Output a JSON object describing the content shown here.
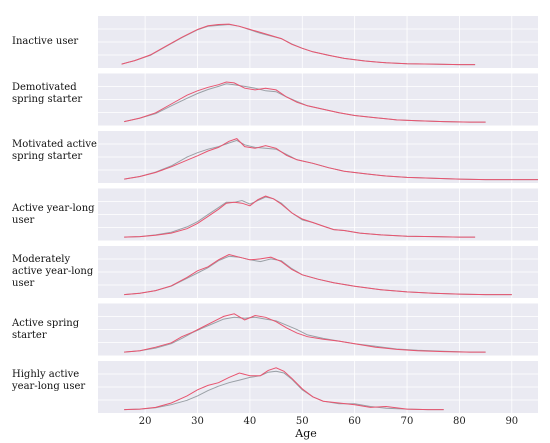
{
  "chart_data": {
    "type": "line",
    "title": "",
    "xlabel": "Age",
    "ylabel": "",
    "xlim": [
      11,
      95
    ],
    "xticks": [
      20,
      30,
      40,
      50,
      60,
      70,
      80,
      90
    ],
    "grid": true,
    "colors": {
      "panel_bg": "#eaeaf2",
      "grid": "#ffffff",
      "series_a": "#9aa0a6",
      "series_b": "#e8546f"
    },
    "panels": [
      {
        "label": "Inactive user",
        "x": [
          15.5,
          18,
          21,
          24,
          27,
          30,
          32,
          34,
          36,
          38,
          40,
          42,
          44,
          46,
          48,
          50,
          52,
          55,
          58,
          62,
          66,
          70,
          75,
          80,
          83
        ],
        "a": [
          0.02,
          0.1,
          0.22,
          0.42,
          0.62,
          0.8,
          0.88,
          0.9,
          0.92,
          0.88,
          0.8,
          0.72,
          0.66,
          0.6,
          0.48,
          0.38,
          0.3,
          0.22,
          0.15,
          0.09,
          0.05,
          0.03,
          0.02,
          0.01,
          0.01
        ],
        "b": [
          0.02,
          0.1,
          0.23,
          0.43,
          0.63,
          0.81,
          0.89,
          0.92,
          0.93,
          0.88,
          0.81,
          0.74,
          0.67,
          0.6,
          0.47,
          0.38,
          0.3,
          0.22,
          0.15,
          0.09,
          0.05,
          0.03,
          0.02,
          0.01,
          0.01
        ]
      },
      {
        "label": "Demotivated spring starter",
        "x": [
          16,
          19,
          22,
          25,
          28,
          30,
          32,
          34,
          35.5,
          37,
          39,
          41,
          43,
          45,
          47,
          49,
          51,
          54,
          57,
          60,
          64,
          68,
          72,
          77,
          82,
          85
        ],
        "a": [
          0.02,
          0.1,
          0.2,
          0.38,
          0.55,
          0.66,
          0.75,
          0.82,
          0.88,
          0.86,
          0.82,
          0.78,
          0.72,
          0.7,
          0.58,
          0.48,
          0.38,
          0.3,
          0.22,
          0.16,
          0.11,
          0.06,
          0.04,
          0.02,
          0.01,
          0.01
        ],
        "b": [
          0.02,
          0.1,
          0.22,
          0.42,
          0.62,
          0.72,
          0.8,
          0.86,
          0.92,
          0.9,
          0.78,
          0.74,
          0.78,
          0.74,
          0.58,
          0.46,
          0.38,
          0.3,
          0.22,
          0.16,
          0.11,
          0.06,
          0.04,
          0.02,
          0.01,
          0.01
        ]
      },
      {
        "label": "Motivated active spring starter",
        "x": [
          16,
          19,
          22,
          25,
          28,
          30,
          32,
          34,
          36,
          37.5,
          39,
          41,
          43,
          45,
          47,
          49,
          52,
          55,
          58,
          62,
          66,
          70,
          75,
          80,
          85,
          90,
          95
        ],
        "a": [
          0.02,
          0.08,
          0.18,
          0.32,
          0.52,
          0.62,
          0.7,
          0.76,
          0.84,
          0.9,
          0.8,
          0.74,
          0.72,
          0.7,
          0.58,
          0.46,
          0.38,
          0.28,
          0.2,
          0.14,
          0.09,
          0.06,
          0.04,
          0.02,
          0.01,
          0.01,
          0.01
        ],
        "b": [
          0.02,
          0.08,
          0.17,
          0.3,
          0.45,
          0.55,
          0.66,
          0.74,
          0.88,
          0.94,
          0.76,
          0.72,
          0.78,
          0.72,
          0.56,
          0.46,
          0.38,
          0.28,
          0.2,
          0.14,
          0.09,
          0.06,
          0.04,
          0.02,
          0.01,
          0.01,
          0.01
        ]
      },
      {
        "label": "Active year-long user",
        "x": [
          16,
          19,
          22,
          25,
          28,
          30,
          32,
          34,
          35.5,
          37,
          38.5,
          40,
          41.5,
          43,
          44.5,
          46,
          48,
          50,
          52,
          54,
          56,
          58,
          61,
          65,
          70,
          75,
          80,
          83
        ],
        "a": [
          0.01,
          0.02,
          0.06,
          0.12,
          0.24,
          0.36,
          0.52,
          0.68,
          0.8,
          0.8,
          0.84,
          0.76,
          0.84,
          0.92,
          0.88,
          0.78,
          0.56,
          0.4,
          0.34,
          0.26,
          0.18,
          0.16,
          0.1,
          0.06,
          0.03,
          0.02,
          0.01,
          0.01
        ],
        "b": [
          0.01,
          0.02,
          0.05,
          0.1,
          0.2,
          0.32,
          0.48,
          0.64,
          0.78,
          0.8,
          0.78,
          0.72,
          0.86,
          0.94,
          0.88,
          0.76,
          0.56,
          0.42,
          0.34,
          0.26,
          0.18,
          0.16,
          0.1,
          0.06,
          0.03,
          0.02,
          0.01,
          0.01
        ]
      },
      {
        "label": "Moderately active year-long user",
        "x": [
          16,
          19,
          22,
          25,
          28,
          30,
          32,
          34,
          36,
          38,
          40,
          42,
          44,
          46,
          48,
          50,
          53,
          56,
          60,
          65,
          70,
          75,
          80,
          85,
          90
        ],
        "a": [
          0.01,
          0.04,
          0.1,
          0.2,
          0.38,
          0.5,
          0.62,
          0.78,
          0.88,
          0.86,
          0.8,
          0.76,
          0.82,
          0.78,
          0.6,
          0.46,
          0.36,
          0.28,
          0.2,
          0.12,
          0.07,
          0.04,
          0.02,
          0.01,
          0.01
        ],
        "b": [
          0.01,
          0.04,
          0.1,
          0.21,
          0.4,
          0.55,
          0.64,
          0.8,
          0.92,
          0.86,
          0.8,
          0.82,
          0.86,
          0.76,
          0.58,
          0.46,
          0.36,
          0.28,
          0.2,
          0.12,
          0.07,
          0.04,
          0.02,
          0.01,
          0.01
        ]
      },
      {
        "label": "Active spring starter",
        "x": [
          16,
          19,
          22,
          25,
          27,
          29,
          31,
          33,
          35,
          37,
          39,
          41,
          43,
          45,
          47,
          49,
          51,
          54,
          57,
          60,
          64,
          68,
          72,
          77,
          82,
          85
        ],
        "a": [
          0.01,
          0.04,
          0.1,
          0.2,
          0.32,
          0.45,
          0.56,
          0.66,
          0.76,
          0.8,
          0.78,
          0.8,
          0.76,
          0.72,
          0.62,
          0.52,
          0.4,
          0.32,
          0.26,
          0.2,
          0.14,
          0.08,
          0.05,
          0.03,
          0.01,
          0.01
        ],
        "b": [
          0.01,
          0.04,
          0.12,
          0.22,
          0.36,
          0.46,
          0.58,
          0.7,
          0.82,
          0.88,
          0.74,
          0.84,
          0.8,
          0.7,
          0.56,
          0.44,
          0.36,
          0.3,
          0.26,
          0.2,
          0.12,
          0.07,
          0.04,
          0.02,
          0.01,
          0.01
        ]
      },
      {
        "label": "Highly active year-long user",
        "x": [
          16,
          19,
          22,
          25,
          28,
          30,
          32,
          34,
          36,
          38,
          40,
          42,
          43.5,
          45,
          46.5,
          48,
          50,
          52,
          54,
          57,
          60,
          63,
          66,
          70,
          74,
          77
        ],
        "a": [
          0.01,
          0.02,
          0.05,
          0.12,
          0.22,
          0.32,
          0.44,
          0.54,
          0.62,
          0.68,
          0.74,
          0.78,
          0.86,
          0.88,
          0.84,
          0.7,
          0.46,
          0.3,
          0.2,
          0.14,
          0.14,
          0.08,
          0.04,
          0.02,
          0.01,
          0.01
        ],
        "b": [
          0.01,
          0.02,
          0.06,
          0.16,
          0.32,
          0.46,
          0.56,
          0.62,
          0.74,
          0.84,
          0.78,
          0.78,
          0.9,
          0.96,
          0.88,
          0.72,
          0.48,
          0.3,
          0.2,
          0.16,
          0.12,
          0.06,
          0.08,
          0.02,
          0.01,
          0.01
        ]
      }
    ]
  }
}
